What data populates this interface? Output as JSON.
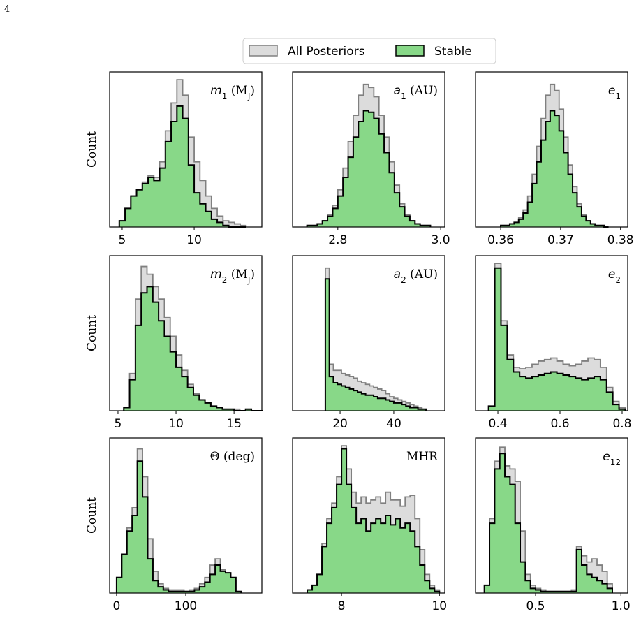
{
  "page_number": "4",
  "legend_position": "upper center",
  "chart_data": [
    {
      "type": "histogram",
      "label": [
        "m",
        "1",
        " (M",
        "J",
        ")"
      ],
      "ylabel": "Count",
      "xlim": [
        4.13,
        14.7
      ],
      "ylim": [
        0,
        100
      ],
      "xticks": [
        5,
        10
      ],
      "bins": [
        4.8,
        5.2,
        5.6,
        6.0,
        6.4,
        6.8,
        7.2,
        7.6,
        8.0,
        8.4,
        8.8,
        9.2,
        9.6,
        10.0,
        10.4,
        10.8,
        11.2,
        11.6,
        12.0,
        12.4,
        12.8,
        13.2,
        13.6
      ],
      "series": [
        {
          "name": "All Posteriors",
          "color": "#dcdcdc",
          "edgecolor": "#808080",
          "values": [
            4,
            12,
            20,
            24,
            29,
            33,
            32,
            42,
            62,
            80,
            95,
            85,
            58,
            42,
            30,
            20,
            12,
            7,
            4,
            3,
            2,
            1
          ]
        },
        {
          "name": "Stable",
          "color": "#88d888",
          "edgecolor": "#000000",
          "values": [
            4,
            12,
            20,
            24,
            28,
            32,
            30,
            38,
            55,
            68,
            78,
            70,
            40,
            22,
            15,
            10,
            5,
            3,
            1,
            0,
            0,
            0
          ]
        }
      ]
    },
    {
      "type": "histogram",
      "label": [
        "a",
        "1",
        " (AU)"
      ],
      "xlim": [
        2.712,
        3.008
      ],
      "ylim": [
        0,
        100
      ],
      "xticks": [
        2.8,
        {
          "value": 3.0,
          "label": "3.0"
        }
      ],
      "bins": [
        2.74,
        2.75,
        2.76,
        2.77,
        2.78,
        2.79,
        2.8,
        2.81,
        2.82,
        2.83,
        2.84,
        2.85,
        2.86,
        2.87,
        2.88,
        2.89,
        2.9,
        2.91,
        2.92,
        2.93,
        2.94,
        2.95,
        2.96,
        2.97,
        2.98
      ],
      "series": [
        {
          "name": "All Posteriors",
          "color": "#dcdcdc",
          "edgecolor": "#808080",
          "values": [
            1,
            1,
            2,
            4,
            8,
            14,
            24,
            38,
            55,
            72,
            85,
            92,
            90,
            84,
            72,
            58,
            42,
            27,
            15,
            8,
            4,
            2,
            1,
            1
          ]
        },
        {
          "name": "Stable",
          "color": "#88d888",
          "edgecolor": "#000000",
          "values": [
            1,
            1,
            2,
            4,
            7,
            12,
            20,
            32,
            45,
            58,
            68,
            75,
            74,
            70,
            60,
            48,
            35,
            22,
            13,
            7,
            4,
            2,
            1,
            1
          ]
        }
      ]
    },
    {
      "type": "histogram",
      "label": [
        "e",
        "1"
      ],
      "xlim": [
        0.3558,
        0.3812
      ],
      "ylim": [
        0,
        100
      ],
      "xticks": [
        0.36,
        0.37,
        0.38
      ],
      "bins": [
        0.36,
        0.36075,
        0.3615,
        0.36225,
        0.363,
        0.36375,
        0.3645,
        0.36525,
        0.366,
        0.36675,
        0.3675,
        0.36825,
        0.369,
        0.36975,
        0.3705,
        0.37125,
        0.372,
        0.37275,
        0.3735,
        0.37425,
        0.375,
        0.37575,
        0.3765,
        0.37725,
        0.378
      ],
      "series": [
        {
          "name": "All Posteriors",
          "color": "#dcdcdc",
          "edgecolor": "#808080",
          "values": [
            1,
            1,
            2,
            3,
            6,
            11,
            20,
            34,
            52,
            70,
            85,
            92,
            88,
            76,
            58,
            40,
            26,
            15,
            8,
            4,
            2,
            1,
            1,
            0
          ]
        },
        {
          "name": "Stable",
          "color": "#88d888",
          "edgecolor": "#000000",
          "values": [
            1,
            1,
            2,
            3,
            5,
            9,
            16,
            28,
            42,
            56,
            68,
            75,
            72,
            62,
            48,
            34,
            22,
            13,
            7,
            4,
            2,
            1,
            1,
            0
          ]
        }
      ]
    },
    {
      "type": "histogram",
      "label": [
        "m",
        "2",
        " (M",
        "J",
        ")"
      ],
      "ylabel": "Count",
      "xlim": [
        4.28,
        17.4
      ],
      "ylim": [
        0,
        100
      ],
      "xticks": [
        5,
        10,
        15
      ],
      "bins": [
        5.5,
        6,
        6.5,
        7,
        7.5,
        8,
        8.5,
        9,
        9.5,
        10,
        10.5,
        11,
        11.5,
        12,
        12.5,
        13,
        13.5,
        14,
        14.5,
        15,
        15.5,
        16,
        16.5,
        17,
        17.5
      ],
      "series": [
        {
          "name": "All Posteriors",
          "color": "#dcdcdc",
          "edgecolor": "#808080",
          "values": [
            2,
            24,
            72,
            93,
            88,
            80,
            72,
            60,
            48,
            36,
            26,
            17,
            11,
            7,
            5,
            3,
            2,
            1,
            1,
            1,
            0,
            1,
            0,
            0
          ]
        },
        {
          "name": "Stable",
          "color": "#88d888",
          "edgecolor": "#000000",
          "values": [
            2,
            20,
            55,
            76,
            80,
            70,
            58,
            48,
            38,
            28,
            22,
            15,
            10,
            7,
            5,
            3,
            2,
            1,
            1,
            0,
            0,
            1,
            0,
            0
          ]
        }
      ]
    },
    {
      "type": "histogram",
      "label": [
        "a",
        "2",
        " (AU)"
      ],
      "xlim": [
        2.3,
        59
      ],
      "ylim": [
        0,
        100
      ],
      "xticks": [
        20,
        40
      ],
      "bins": [
        14.5,
        16,
        17.5,
        19,
        20.5,
        22,
        23.5,
        25,
        26.5,
        28,
        29.5,
        31,
        32.5,
        34,
        35.5,
        37,
        38.5,
        40,
        41.5,
        43,
        44.5,
        46,
        47.5,
        49,
        50.5,
        52
      ],
      "series": [
        {
          "name": "All Posteriors",
          "color": "#dcdcdc",
          "edgecolor": "#808080",
          "values": [
            92,
            30,
            26,
            26,
            24,
            23,
            22,
            21,
            19,
            18,
            17,
            16,
            15,
            14,
            13,
            11,
            9,
            8,
            7,
            6,
            5,
            4,
            3,
            2,
            1
          ]
        },
        {
          "name": "Stable",
          "color": "#88d888",
          "edgecolor": "#000000",
          "values": [
            85,
            22,
            18,
            17,
            16,
            15,
            14,
            13,
            12,
            11,
            10,
            10,
            9,
            8,
            8,
            7,
            6,
            5,
            5,
            4,
            3,
            2,
            2,
            1,
            1
          ]
        }
      ]
    },
    {
      "type": "histogram",
      "label": [
        "e",
        "2"
      ],
      "xlim": [
        0.328,
        0.818
      ],
      "ylim": [
        0,
        100
      ],
      "xticks": [
        0.4,
        0.6,
        0.8
      ],
      "bins": [
        0.37,
        0.39,
        0.41,
        0.43,
        0.45,
        0.47,
        0.49,
        0.51,
        0.53,
        0.55,
        0.57,
        0.59,
        0.61,
        0.63,
        0.65,
        0.67,
        0.69,
        0.71,
        0.73,
        0.75,
        0.77,
        0.79,
        0.81
      ],
      "series": [
        {
          "name": "All Posteriors",
          "color": "#dcdcdc",
          "edgecolor": "#808080",
          "values": [
            3,
            95,
            58,
            36,
            28,
            27,
            28,
            30,
            32,
            33,
            34,
            32,
            30,
            29,
            30,
            32,
            34,
            33,
            28,
            15,
            6,
            2
          ]
        },
        {
          "name": "Stable",
          "color": "#88d888",
          "edgecolor": "#000000",
          "values": [
            3,
            92,
            55,
            33,
            25,
            22,
            21,
            22,
            23,
            24,
            25,
            24,
            23,
            22,
            21,
            20,
            21,
            22,
            20,
            12,
            4,
            1
          ]
        }
      ]
    },
    {
      "type": "histogram",
      "label": [
        "Θ (deg)"
      ],
      "ylabel": "Count",
      "xlim": [
        -10,
        210
      ],
      "ylim": [
        0,
        100
      ],
      "xticks": [
        0,
        100
      ],
      "bins": [
        0,
        7.5,
        15,
        22.5,
        30,
        37.5,
        45,
        52.5,
        60,
        67.5,
        75,
        82.5,
        90,
        97.5,
        105,
        112.5,
        120,
        127.5,
        135,
        142.5,
        150,
        157.5,
        165,
        172.5,
        180
      ],
      "series": [
        {
          "name": "All Posteriors",
          "color": "#dcdcdc",
          "edgecolor": "#808080",
          "values": [
            10,
            25,
            42,
            55,
            93,
            75,
            35,
            14,
            6,
            3,
            2,
            2,
            2,
            1,
            2,
            3,
            6,
            10,
            18,
            22,
            15,
            12,
            8,
            1
          ]
        },
        {
          "name": "Stable",
          "color": "#88d888",
          "edgecolor": "#000000",
          "values": [
            10,
            25,
            40,
            50,
            85,
            62,
            22,
            8,
            4,
            2,
            1,
            1,
            1,
            1,
            1,
            2,
            4,
            7,
            12,
            18,
            14,
            13,
            10,
            1
          ]
        }
      ]
    },
    {
      "type": "histogram",
      "label": [
        "MHR"
      ],
      "xlim": [
        7.0,
        10.11
      ],
      "ylim": [
        0,
        100
      ],
      "xticks": [
        8,
        10
      ],
      "bins": [
        7.3,
        7.4,
        7.5,
        7.6,
        7.7,
        7.8,
        7.9,
        8.0,
        8.1,
        8.2,
        8.3,
        8.4,
        8.5,
        8.6,
        8.7,
        8.8,
        8.9,
        9.0,
        9.1,
        9.2,
        9.3,
        9.4,
        9.5,
        9.6,
        9.7,
        9.8,
        9.9,
        10.0
      ],
      "series": [
        {
          "name": "All Posteriors",
          "color": "#dcdcdc",
          "edgecolor": "#808080",
          "values": [
            2,
            5,
            12,
            32,
            48,
            58,
            75,
            95,
            80,
            65,
            58,
            62,
            58,
            60,
            62,
            58,
            65,
            60,
            60,
            56,
            62,
            63,
            48,
            28,
            12,
            5,
            2
          ]
        },
        {
          "name": "Stable",
          "color": "#88d888",
          "edgecolor": "#000000",
          "values": [
            2,
            5,
            12,
            30,
            45,
            55,
            70,
            93,
            70,
            55,
            45,
            48,
            40,
            45,
            48,
            45,
            50,
            44,
            48,
            42,
            45,
            40,
            30,
            18,
            8,
            3,
            1
          ]
        }
      ]
    },
    {
      "type": "histogram",
      "label": [
        "e",
        "12"
      ],
      "xlim": [
        0.148,
        1.04
      ],
      "ylim": [
        0,
        100
      ],
      "xticks": [
        0.5,
        {
          "value": 1.0,
          "label": "1.0"
        }
      ],
      "bins": [
        0.2,
        0.23,
        0.26,
        0.29,
        0.32,
        0.35,
        0.38,
        0.41,
        0.44,
        0.47,
        0.5,
        0.53,
        0.56,
        0.59,
        0.62,
        0.65,
        0.68,
        0.71,
        0.74,
        0.77,
        0.8,
        0.83,
        0.86,
        0.89,
        0.92,
        0.95
      ],
      "series": [
        {
          "name": "All Posteriors",
          "color": "#dcdcdc",
          "edgecolor": "#808080",
          "values": [
            5,
            48,
            85,
            94,
            82,
            80,
            72,
            40,
            12,
            5,
            3,
            2,
            1,
            1,
            1,
            1,
            1,
            2,
            30,
            24,
            20,
            22,
            18,
            14,
            6
          ]
        },
        {
          "name": "Stable",
          "color": "#88d888",
          "edgecolor": "#000000",
          "values": [
            5,
            45,
            80,
            90,
            75,
            70,
            45,
            20,
            8,
            3,
            2,
            1,
            1,
            1,
            1,
            1,
            1,
            1,
            28,
            18,
            12,
            10,
            8,
            6,
            3
          ]
        }
      ]
    }
  ]
}
